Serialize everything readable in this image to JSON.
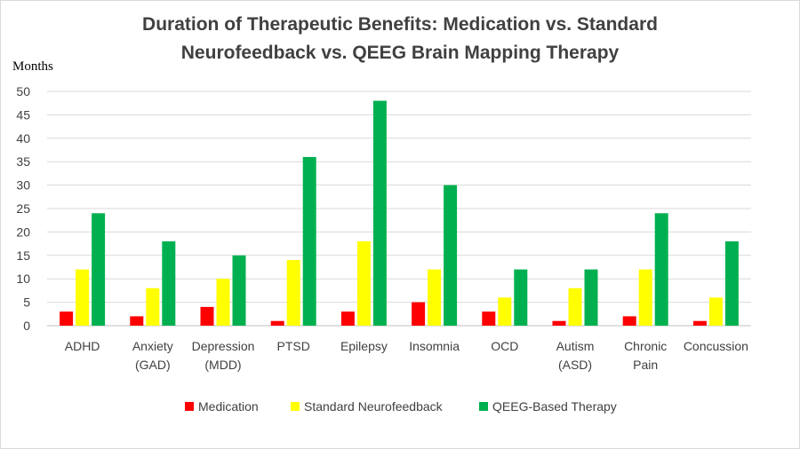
{
  "chart_data": {
    "type": "bar",
    "title_lines": [
      "Duration of Therapeutic Benefits: Medication vs. Standard",
      "Neurofeedback vs. QEEG Brain Mapping Therapy"
    ],
    "ylabel": "Months",
    "ylim": [
      0,
      50
    ],
    "yticks": [
      0,
      5,
      10,
      15,
      20,
      25,
      30,
      35,
      40,
      45,
      50
    ],
    "grid": true,
    "legend_position": "bottom",
    "categories": [
      [
        "ADHD"
      ],
      [
        "Anxiety",
        "(GAD)"
      ],
      [
        "Depression",
        "(MDD)"
      ],
      [
        "PTSD"
      ],
      [
        "Epilepsy"
      ],
      [
        "Insomnia"
      ],
      [
        "OCD"
      ],
      [
        "Autism",
        "(ASD)"
      ],
      [
        "Chronic",
        "Pain"
      ],
      [
        "Concussion"
      ]
    ],
    "series": [
      {
        "name": "Medication",
        "color": "#ff0000",
        "values": [
          3,
          2,
          4,
          1,
          3,
          5,
          3,
          1,
          2,
          1
        ]
      },
      {
        "name": "Standard Neurofeedback",
        "color": "#ffff00",
        "values": [
          12,
          8,
          10,
          14,
          18,
          12,
          6,
          8,
          12,
          6
        ]
      },
      {
        "name": "QEEG-Based Therapy",
        "color": "#00b050",
        "values": [
          24,
          18,
          15,
          36,
          48,
          30,
          12,
          12,
          24,
          18
        ]
      }
    ]
  }
}
